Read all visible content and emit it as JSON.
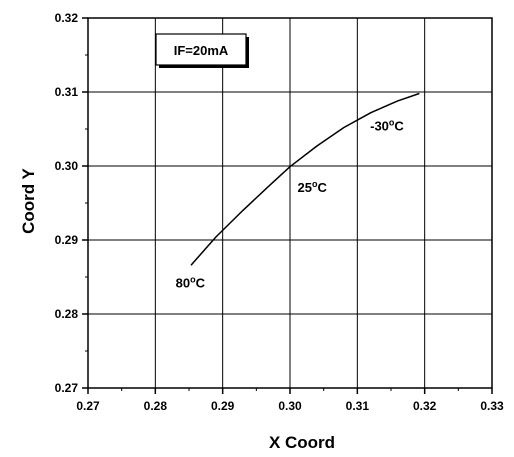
{
  "chart_data": {
    "type": "line",
    "title": "",
    "xlabel": "X Coord",
    "ylabel": "Coord Y",
    "xlim": [
      0.27,
      0.33
    ],
    "ylim": [
      0.27,
      0.32
    ],
    "x_ticks": [
      "0.27",
      "0.28",
      "0.29",
      "0.30",
      "0.31",
      "0.32",
      "0.33"
    ],
    "y_ticks": [
      "0.27",
      "0.28",
      "0.29",
      "0.30",
      "0.31",
      "0.32"
    ],
    "grid": true,
    "legend_box": "IF=20mA",
    "legend_placement": "top-left",
    "series": [
      {
        "x": [
          0.2853,
          0.289,
          0.293,
          0.297,
          0.3,
          0.304,
          0.308,
          0.312,
          0.316,
          0.3192
        ],
        "y": [
          0.2866,
          0.2904,
          0.294,
          0.2974,
          0.2999,
          0.3027,
          0.3052,
          0.3072,
          0.3088,
          0.3098
        ]
      }
    ],
    "annotations": [
      {
        "text": "80°C",
        "x": 0.2852,
        "y": 0.2836
      },
      {
        "text": "25°C",
        "x": 0.3033,
        "y": 0.2965
      },
      {
        "text": "-30°C",
        "x": 0.3144,
        "y": 0.3048
      }
    ]
  }
}
